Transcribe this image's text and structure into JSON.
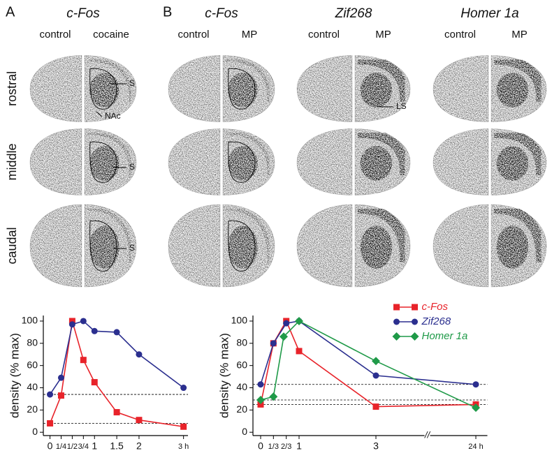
{
  "panel_labels": [
    "A",
    "B"
  ],
  "columns": [
    {
      "gene": "c-Fos",
      "conditions": [
        "control",
        "cocaine"
      ]
    },
    {
      "gene": "c-Fos",
      "conditions": [
        "control",
        "MP"
      ]
    },
    {
      "gene": "Zif268",
      "conditions": [
        "control",
        "MP"
      ]
    },
    {
      "gene": "Homer 1a",
      "conditions": [
        "control",
        "MP"
      ]
    }
  ],
  "rows": [
    "rostral",
    "middle",
    "caudal"
  ],
  "annotations": [
    "S",
    "NAc",
    "S",
    "S",
    "LS"
  ],
  "chart_data": [
    {
      "type": "line",
      "ylabel": "density (% max)",
      "xlim": [
        -0.15,
        3.1
      ],
      "xticks": [
        0,
        {
          "value": 0.25,
          "label": "1/4"
        },
        {
          "value": 0.5,
          "label": "1/2"
        },
        {
          "value": 0.75,
          "label": "3/4"
        },
        1,
        1.5,
        2,
        {
          "value": 3,
          "label": "3 h"
        }
      ],
      "ylim": [
        -3,
        105
      ],
      "yticks": [
        0,
        20,
        40,
        60,
        80,
        100
      ],
      "reference_lines": [
        34,
        8
      ],
      "series": [
        {
          "color": "#e8232a",
          "marker": "square",
          "x": [
            0,
            0.25,
            0.5,
            0.75,
            1,
            1.5,
            2,
            3
          ],
          "values": [
            8,
            33,
            100,
            65,
            45,
            18,
            11,
            5
          ]
        },
        {
          "color": "#2b2f8f",
          "marker": "circle",
          "x": [
            0,
            0.25,
            0.5,
            0.75,
            1,
            1.5,
            2,
            3
          ],
          "values": [
            34,
            49,
            97,
            100,
            91,
            90,
            70,
            40
          ]
        }
      ]
    },
    {
      "type": "line",
      "ylabel": "density (% max)",
      "xlim": [
        -0.2,
        24.3
      ],
      "xbreak": [
        4.3,
        22.7
      ],
      "break_label": "//",
      "xticks": [
        0,
        {
          "value": 0.333,
          "label": "1/3"
        },
        {
          "value": 0.667,
          "label": "2/3"
        },
        1,
        3,
        {
          "value": 24,
          "label": "24 h"
        }
      ],
      "ylim": [
        -3,
        105
      ],
      "yticks": [
        0,
        20,
        40,
        60,
        80,
        100
      ],
      "reference_lines": [
        43,
        29,
        25
      ],
      "legend": "top-right",
      "series": [
        {
          "name": "c-Fos",
          "color": "#e8232a",
          "marker": "square",
          "x": [
            0,
            0.333,
            0.667,
            1,
            3,
            24
          ],
          "values": [
            25,
            80,
            100,
            73,
            23,
            25
          ]
        },
        {
          "name": "Zif268",
          "color": "#2b2f8f",
          "marker": "circle",
          "x": [
            0,
            0.333,
            0.667,
            1,
            3,
            24
          ],
          "values": [
            43,
            80,
            98,
            100,
            51,
            43
          ]
        },
        {
          "name": "Homer 1a",
          "color": "#1f9a48",
          "marker": "diamond",
          "x": [
            0,
            0.333,
            0.6,
            1,
            3,
            24
          ],
          "values": [
            29,
            32,
            86,
            100,
            64,
            22
          ]
        }
      ]
    }
  ]
}
